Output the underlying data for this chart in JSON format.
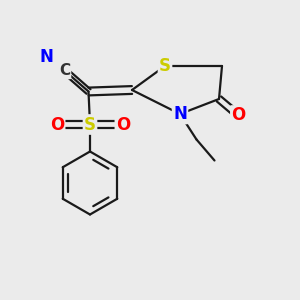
{
  "bg_color": "#ebebeb",
  "bond_color": "#1a1a1a",
  "bond_width": 1.6,
  "atom_colors": {
    "S": "#cccc00",
    "N": "#0000ff",
    "O": "#ff0000",
    "C_dark": "#333333"
  },
  "font_size_atoms": 12,
  "fig_w": 3.0,
  "fig_h": 3.0,
  "dpi": 100,
  "xlim": [
    0,
    10
  ],
  "ylim": [
    0,
    10
  ]
}
